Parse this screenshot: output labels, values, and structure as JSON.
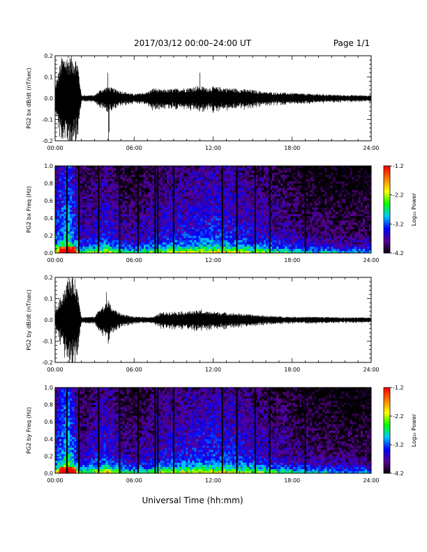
{
  "header": {
    "title": "2017/03/12  00:00–24:00 UT",
    "page": "Page 1/1"
  },
  "footer": {
    "xlabel": "Universal Time (hh:mm)"
  },
  "chart_data": [
    {
      "type": "line",
      "name": "bx-waveform",
      "ylabel": "PG2 bx dB/dt (nT/sec)",
      "xlim": [
        0,
        24
      ],
      "ylim": [
        -0.2,
        0.2
      ],
      "x_ticks": [
        "00:00",
        "06:00",
        "12:00",
        "18:00",
        "24:00"
      ],
      "y_ticks": [
        "-0.2",
        "-0.1",
        "0.0",
        "0.1",
        "0.2"
      ],
      "envelope": {
        "hours": [
          0,
          0.5,
          1.0,
          1.5,
          1.7,
          2.0,
          3.0,
          3.4,
          3.8,
          4.0,
          4.3,
          5.0,
          6.0,
          7.0,
          7.5,
          8.0,
          9.0,
          10.0,
          11.0,
          11.5,
          12.0,
          13.0,
          14.0,
          15.0,
          16.0,
          18.0,
          20.0,
          22.0,
          24.0
        ],
        "amplitude": [
          0.05,
          0.2,
          0.2,
          0.2,
          0.18,
          0.015,
          0.015,
          0.04,
          0.05,
          0.06,
          0.05,
          0.035,
          0.02,
          0.03,
          0.05,
          0.04,
          0.045,
          0.05,
          0.06,
          0.05,
          0.055,
          0.05,
          0.045,
          0.04,
          0.03,
          0.025,
          0.02,
          0.015,
          0.015
        ]
      },
      "spikes": [
        {
          "hour": 4.0,
          "value": 0.12
        },
        {
          "hour": 4.1,
          "value": -0.16
        },
        {
          "hour": 4.05,
          "value": -0.2
        },
        {
          "hour": 11.0,
          "value": 0.12
        },
        {
          "hour": 7.6,
          "value": -0.05
        }
      ]
    },
    {
      "type": "heatmap",
      "name": "bx-spectrogram",
      "ylabel": "PG2 bx Freq (Hz)",
      "xlim": [
        0,
        24
      ],
      "ylim": [
        0,
        1.0
      ],
      "x_ticks": [
        "00:00",
        "06:00",
        "12:00",
        "18:00",
        "24:00"
      ],
      "y_ticks": [
        "0.0",
        "0.2",
        "0.4",
        "0.6",
        "0.8",
        "1.0"
      ],
      "colorbar": {
        "label": "Log₁₀ Power",
        "range": [
          -4.2,
          -1.2
        ],
        "ticks": [
          "-1.2",
          "-2.2",
          "-3.2",
          "-4.2"
        ],
        "colors": [
          "#000000",
          "#5a0090",
          "#0000ff",
          "#00c8ff",
          "#00ff00",
          "#ffff00",
          "#ff8000",
          "#ff0000"
        ]
      },
      "data_gaps_hours": [
        0.9,
        1.8,
        3.3,
        4.9,
        6.3,
        7.6,
        7.8,
        9.0,
        12.7,
        13.8,
        15.2,
        16.3,
        19.0
      ],
      "activity": {
        "hours": [
          0,
          1,
          2,
          3,
          4,
          5,
          6,
          8,
          10,
          12,
          14,
          16,
          18,
          20,
          22,
          24
        ],
        "level": [
          0.55,
          0.8,
          0.35,
          0.4,
          0.5,
          0.35,
          0.3,
          0.45,
          0.5,
          0.55,
          0.5,
          0.4,
          0.3,
          0.25,
          0.2,
          0.2
        ]
      }
    },
    {
      "type": "line",
      "name": "by-waveform",
      "ylabel": "PG2 by dB/dt (nT/sec)",
      "xlim": [
        0,
        24
      ],
      "ylim": [
        -0.2,
        0.2
      ],
      "x_ticks": [
        "00:00",
        "06:00",
        "12:00",
        "18:00",
        "24:00"
      ],
      "y_ticks": [
        "-0.2",
        "-0.1",
        "0.0",
        "0.1",
        "0.2"
      ],
      "envelope": {
        "hours": [
          0,
          0.5,
          1.0,
          1.5,
          1.7,
          2.0,
          3.0,
          3.4,
          3.8,
          4.0,
          4.3,
          5.0,
          6.0,
          7.0,
          7.5,
          8.0,
          9.0,
          10.0,
          11.0,
          11.5,
          12.0,
          13.0,
          14.0,
          15.0,
          16.0,
          18.0,
          20.0,
          22.0,
          24.0
        ],
        "amplitude": [
          0.04,
          0.12,
          0.2,
          0.2,
          0.15,
          0.015,
          0.015,
          0.06,
          0.07,
          0.1,
          0.06,
          0.03,
          0.015,
          0.015,
          0.015,
          0.035,
          0.04,
          0.04,
          0.045,
          0.04,
          0.04,
          0.035,
          0.03,
          0.025,
          0.02,
          0.015,
          0.015,
          0.012,
          0.012
        ]
      },
      "spikes": [
        {
          "hour": 3.9,
          "value": 0.13
        },
        {
          "hour": 4.1,
          "value": -0.09
        },
        {
          "hour": 11.1,
          "value": 0.05
        }
      ]
    },
    {
      "type": "heatmap",
      "name": "by-spectrogram",
      "ylabel": "PG2 by Freq (Hz)",
      "xlim": [
        0,
        24
      ],
      "ylim": [
        0,
        1.0
      ],
      "x_ticks": [
        "00:00",
        "06:00",
        "12:00",
        "18:00",
        "24:00"
      ],
      "y_ticks": [
        "0.0",
        "0.2",
        "0.4",
        "0.6",
        "0.8",
        "1.0"
      ],
      "colorbar": {
        "label": "Log₁₀ Power",
        "range": [
          -4.2,
          -1.2
        ],
        "ticks": [
          "-1.2",
          "-2.2",
          "-3.2",
          "-4.2"
        ],
        "colors": [
          "#000000",
          "#5a0090",
          "#0000ff",
          "#00c8ff",
          "#00ff00",
          "#ffff00",
          "#ff8000",
          "#ff0000"
        ]
      },
      "data_gaps_hours": [
        0.9,
        1.8,
        3.3,
        4.9,
        6.3,
        7.6,
        7.8,
        9.0,
        12.7,
        13.8,
        15.2,
        16.3,
        19.0
      ],
      "activity": {
        "hours": [
          0,
          1,
          2,
          3,
          4,
          5,
          6,
          8,
          10,
          12,
          14,
          16,
          18,
          20,
          22,
          24
        ],
        "level": [
          0.55,
          0.85,
          0.35,
          0.45,
          0.55,
          0.35,
          0.3,
          0.45,
          0.5,
          0.55,
          0.5,
          0.4,
          0.3,
          0.25,
          0.2,
          0.2
        ]
      }
    }
  ]
}
